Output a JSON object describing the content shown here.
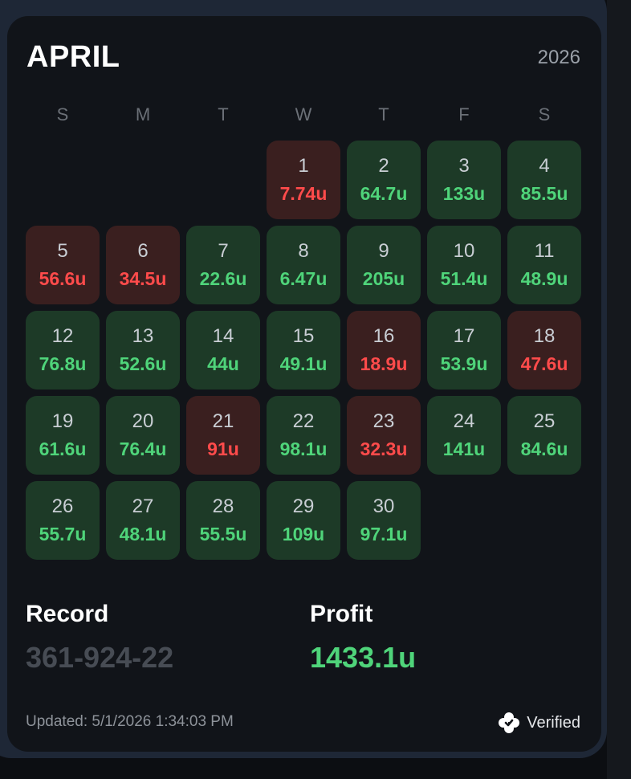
{
  "header": {
    "month": "APRIL",
    "year": "2026"
  },
  "weekdays": [
    "S",
    "M",
    "T",
    "W",
    "T",
    "F",
    "S"
  ],
  "start_weekday_index": 3,
  "days": [
    {
      "day": "1",
      "value": "7.74u",
      "status": "loss"
    },
    {
      "day": "2",
      "value": "64.7u",
      "status": "win"
    },
    {
      "day": "3",
      "value": "133u",
      "status": "win"
    },
    {
      "day": "4",
      "value": "85.5u",
      "status": "win"
    },
    {
      "day": "5",
      "value": "56.6u",
      "status": "loss"
    },
    {
      "day": "6",
      "value": "34.5u",
      "status": "loss"
    },
    {
      "day": "7",
      "value": "22.6u",
      "status": "win"
    },
    {
      "day": "8",
      "value": "6.47u",
      "status": "win"
    },
    {
      "day": "9",
      "value": "205u",
      "status": "win"
    },
    {
      "day": "10",
      "value": "51.4u",
      "status": "win"
    },
    {
      "day": "11",
      "value": "48.9u",
      "status": "win"
    },
    {
      "day": "12",
      "value": "76.8u",
      "status": "win"
    },
    {
      "day": "13",
      "value": "52.6u",
      "status": "win"
    },
    {
      "day": "14",
      "value": "44u",
      "status": "win"
    },
    {
      "day": "15",
      "value": "49.1u",
      "status": "win"
    },
    {
      "day": "16",
      "value": "18.9u",
      "status": "loss"
    },
    {
      "day": "17",
      "value": "53.9u",
      "status": "win"
    },
    {
      "day": "18",
      "value": "47.6u",
      "status": "loss"
    },
    {
      "day": "19",
      "value": "61.6u",
      "status": "win"
    },
    {
      "day": "20",
      "value": "76.4u",
      "status": "win"
    },
    {
      "day": "21",
      "value": "91u",
      "status": "loss"
    },
    {
      "day": "22",
      "value": "98.1u",
      "status": "win"
    },
    {
      "day": "23",
      "value": "32.3u",
      "status": "loss"
    },
    {
      "day": "24",
      "value": "141u",
      "status": "win"
    },
    {
      "day": "25",
      "value": "84.6u",
      "status": "win"
    },
    {
      "day": "26",
      "value": "55.7u",
      "status": "win"
    },
    {
      "day": "27",
      "value": "48.1u",
      "status": "win"
    },
    {
      "day": "28",
      "value": "55.5u",
      "status": "win"
    },
    {
      "day": "29",
      "value": "109u",
      "status": "win"
    },
    {
      "day": "30",
      "value": "97.1u",
      "status": "win"
    }
  ],
  "stats": {
    "record_label": "Record",
    "record_value": "361-924-22",
    "profit_label": "Profit",
    "profit_value": "1433.1u"
  },
  "footer": {
    "updated": "Updated: 5/1/2026 1:34:03 PM",
    "verified_label": "Verified",
    "verified_icon": "clover-badge-icon"
  },
  "colors": {
    "win_bg": "#1d3a27",
    "win_text": "#4fd47a",
    "loss_bg": "#3a1f1f",
    "loss_text": "#ff4b4b",
    "card_bg": "#111419"
  }
}
